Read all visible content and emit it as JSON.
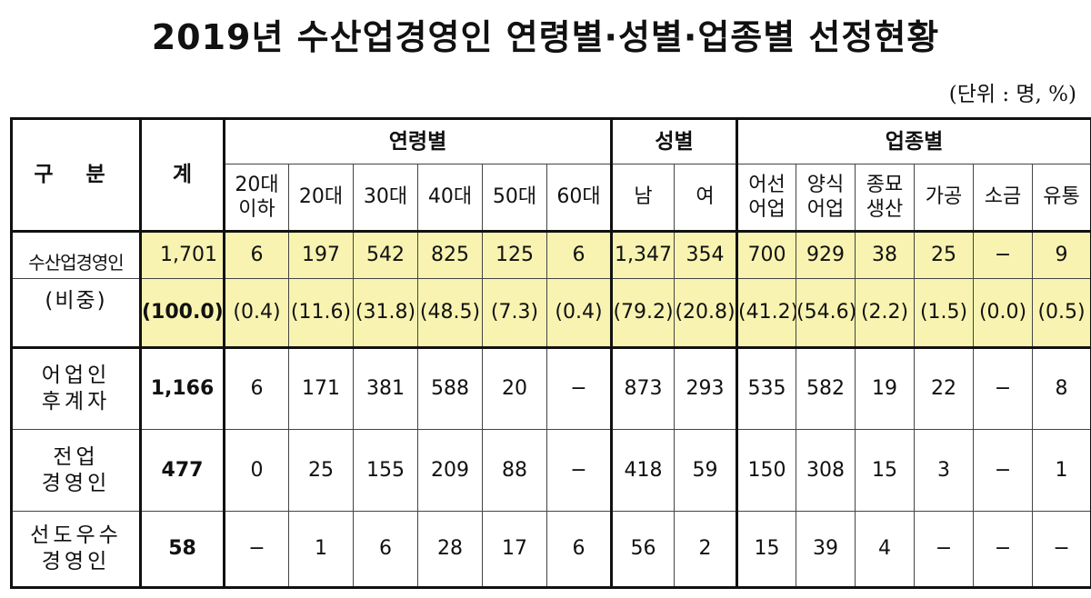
{
  "title": "2019년 수산업경영인 연령별·성별·업종별 선정현황",
  "unit": "(단위 : 명, %)",
  "header": {
    "category": "구 분",
    "total": "계",
    "age_group": "연령별",
    "gender_group": "성별",
    "industry_group": "업종별",
    "ages": [
      "20대\n이하",
      "20대",
      "30대",
      "40대",
      "50대",
      "60대"
    ],
    "genders": [
      "남",
      "여"
    ],
    "industries": [
      "어선\n어업",
      "양식\n어업",
      "종묘\n생산",
      "가공",
      "소금",
      "유통"
    ]
  },
  "rows": [
    {
      "label": "수산업경영인",
      "total": "1,701",
      "ages": [
        "6",
        "197",
        "542",
        "825",
        "125",
        "6"
      ],
      "genders": [
        "1,347",
        "354"
      ],
      "industries": [
        "700",
        "929",
        "38",
        "25",
        "−",
        "9"
      ]
    },
    {
      "label": "(비중)",
      "total": "(100.0)",
      "ages": [
        "(0.4)",
        "(11.6)",
        "(31.8)",
        "(48.5)",
        "(7.3)",
        "(0.4)"
      ],
      "genders": [
        "(79.2)",
        "(20.8)"
      ],
      "industries": [
        "(41.2)",
        "(54.6)",
        "(2.2)",
        "(1.5)",
        "(0.0)",
        "(0.5)"
      ]
    },
    {
      "label": "어업인\n후계자",
      "total": "1,166",
      "ages": [
        "6",
        "171",
        "381",
        "588",
        "20",
        "−"
      ],
      "genders": [
        "873",
        "293"
      ],
      "industries": [
        "535",
        "582",
        "19",
        "22",
        "−",
        "8"
      ]
    },
    {
      "label": "전업\n경영인",
      "total": "477",
      "ages": [
        "0",
        "25",
        "155",
        "209",
        "88",
        "−"
      ],
      "genders": [
        "418",
        "59"
      ],
      "industries": [
        "150",
        "308",
        "15",
        "3",
        "−",
        "1"
      ]
    },
    {
      "label": "선도우수\n경영인",
      "total": "58",
      "ages": [
        "−",
        "1",
        "6",
        "28",
        "17",
        "6"
      ],
      "genders": [
        "56",
        "2"
      ],
      "industries": [
        "15",
        "39",
        "4",
        "−",
        "−",
        "−"
      ]
    }
  ]
}
